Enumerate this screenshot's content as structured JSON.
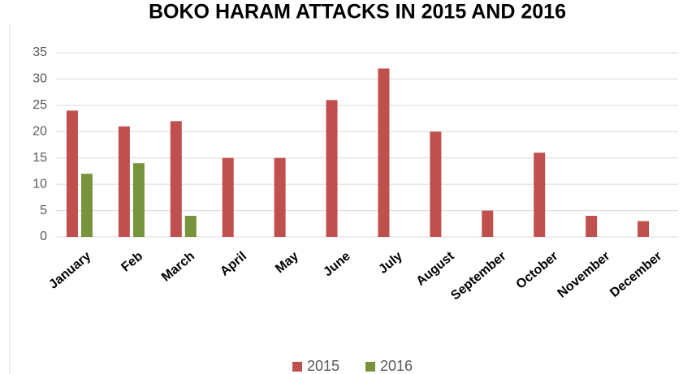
{
  "chart_data": {
    "type": "bar",
    "title": "BOKO HARAM ATTACKS IN 2015 AND 2016",
    "categories": [
      "January",
      "Feb",
      "March",
      "April",
      "May",
      "June",
      "July",
      "August",
      "September",
      "October",
      "November",
      "December"
    ],
    "series": [
      {
        "name": "2015",
        "color": "#c0504d",
        "values": [
          24,
          21,
          22,
          15,
          15,
          26,
          32,
          20,
          5,
          16,
          4,
          3
        ]
      },
      {
        "name": "2016",
        "color": "#77933c",
        "values": [
          12,
          14,
          4,
          null,
          null,
          null,
          null,
          null,
          null,
          null,
          null,
          null
        ]
      }
    ],
    "ylim": [
      0,
      35
    ],
    "yticks": [
      0,
      5,
      10,
      15,
      20,
      25,
      30,
      35
    ],
    "grid": true,
    "legend": "bottom"
  }
}
